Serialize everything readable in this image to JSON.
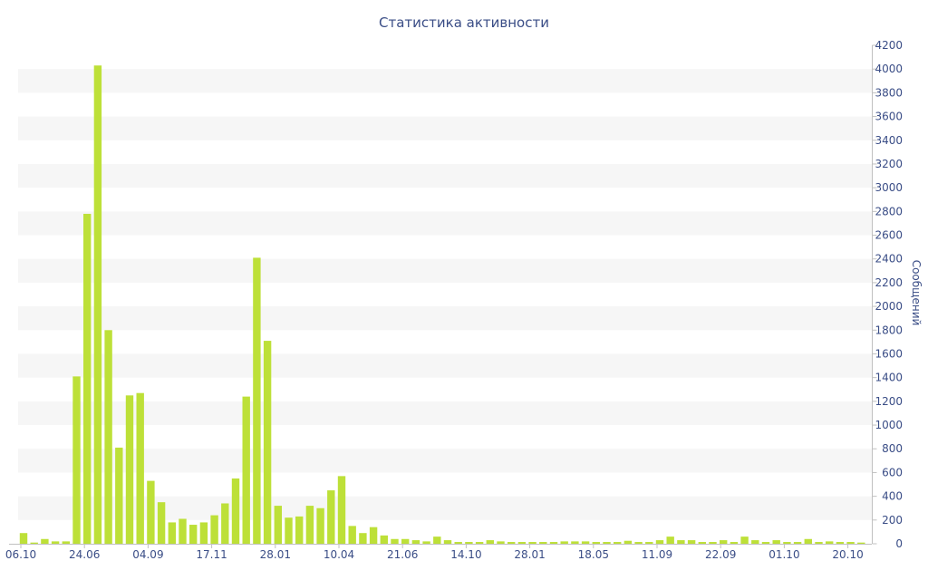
{
  "chart_data": {
    "type": "bar",
    "title": "Статистика активности",
    "ylabel": "Сообщений",
    "xlabel": "",
    "ylim": [
      0,
      4200
    ],
    "yticks": [
      0,
      200,
      400,
      600,
      800,
      1000,
      1200,
      1400,
      1600,
      1800,
      2000,
      2200,
      2400,
      2600,
      2800,
      3000,
      3200,
      3400,
      3600,
      3800,
      4000,
      4200
    ],
    "y_axis_side": "right",
    "x_tick_labels": [
      {
        "label": "06.10",
        "index": 0
      },
      {
        "label": "24.06",
        "index": 6
      },
      {
        "label": "04.09",
        "index": 12
      },
      {
        "label": "17.11",
        "index": 18
      },
      {
        "label": "28.01",
        "index": 24
      },
      {
        "label": "10.04",
        "index": 30
      },
      {
        "label": "21.06",
        "index": 36
      },
      {
        "label": "14.10",
        "index": 42
      },
      {
        "label": "28.01",
        "index": 48
      },
      {
        "label": "18.05",
        "index": 54
      },
      {
        "label": "11.09",
        "index": 60
      },
      {
        "label": "22.09",
        "index": 66
      },
      {
        "label": "01.10",
        "index": 72
      },
      {
        "label": "20.10",
        "index": 78
      }
    ],
    "values": [
      90,
      10,
      40,
      20,
      20,
      1410,
      2780,
      4030,
      1800,
      810,
      1250,
      1270,
      530,
      350,
      180,
      210,
      160,
      180,
      240,
      340,
      550,
      1240,
      2410,
      1710,
      320,
      220,
      230,
      320,
      300,
      450,
      570,
      150,
      90,
      140,
      70,
      40,
      40,
      30,
      20,
      60,
      30,
      15,
      15,
      15,
      30,
      20,
      15,
      15,
      15,
      15,
      15,
      20,
      20,
      20,
      15,
      15,
      15,
      25,
      15,
      15,
      30,
      60,
      30,
      30,
      15,
      15,
      30,
      15,
      60,
      30,
      15,
      30,
      15,
      15,
      40,
      15,
      20,
      15,
      15,
      10
    ],
    "bar_color": "#bde038",
    "grid": true
  }
}
